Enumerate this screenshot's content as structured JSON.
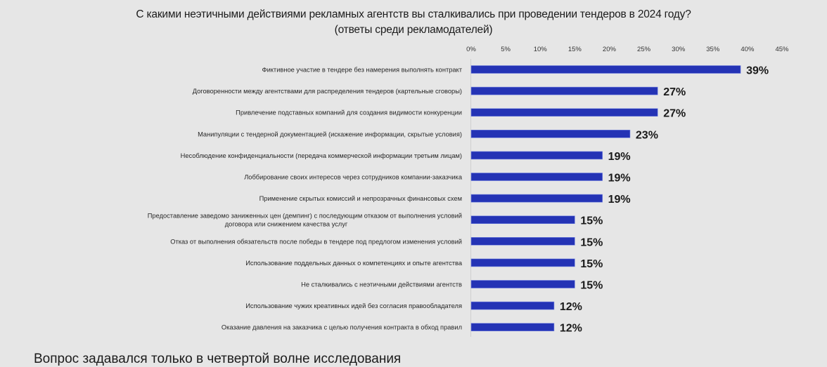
{
  "chart_data": {
    "type": "bar",
    "orientation": "horizontal",
    "title": "С какими неэтичными действиями рекламных агентств вы сталкивались при проведении тендеров в 2024 году?",
    "subtitle": "(ответы среди рекламодателей)",
    "xlabel": "",
    "ylabel": "",
    "xlim": [
      0,
      45
    ],
    "x_ticks": [
      "0%",
      "5%",
      "10%",
      "15%",
      "20%",
      "25%",
      "30%",
      "35%",
      "40%",
      "45%"
    ],
    "x_tick_values": [
      0,
      5,
      10,
      15,
      20,
      25,
      30,
      35,
      40,
      45
    ],
    "x_axis_position": "top",
    "grid": false,
    "bar_color": "#2433b5",
    "categories": [
      [
        "Фиктивное участие в тендере без намерения выполнять контракт"
      ],
      [
        "Договоренности между агентствами для распределения тендеров (картельные сговоры)"
      ],
      [
        "Привлечение подставных компаний для создания видимости конкуренции"
      ],
      [
        "Манипуляции с тендерной документацией (искажение информации, скрытые условия)"
      ],
      [
        "Несоблюдение конфиденциальности (передача коммерческой информации третьим лицам)"
      ],
      [
        "Лоббирование своих интересов через сотрудников компании-заказчика"
      ],
      [
        "Применение скрытых комиссий и непрозрачных финансовых схем"
      ],
      [
        "Предоставление заведомо заниженных цен (демпинг) с последующим отказом от выполнения условий",
        "договора или снижением качества услуг"
      ],
      [
        "Отказ от выполнения обязательств после победы в тендере под предлогом изменения условий"
      ],
      [
        "Использование поддельных данных о компетенциях и опыте агентства"
      ],
      [
        "Не сталкивались с неэтичными действиями агентств"
      ],
      [
        "Использование чужих креативных идей без согласия правообладателя"
      ],
      [
        "Оказание давления на заказчика с целью получения контракта в обход правил"
      ]
    ],
    "values": [
      39,
      27,
      27,
      23,
      19,
      19,
      19,
      15,
      15,
      15,
      15,
      12,
      12
    ],
    "value_labels": [
      "39%",
      "27%",
      "27%",
      "23%",
      "19%",
      "19%",
      "19%",
      "15%",
      "15%",
      "15%",
      "15%",
      "12%",
      "12%"
    ]
  },
  "footnote": "Вопрос задавался только в четвертой волне исследования"
}
